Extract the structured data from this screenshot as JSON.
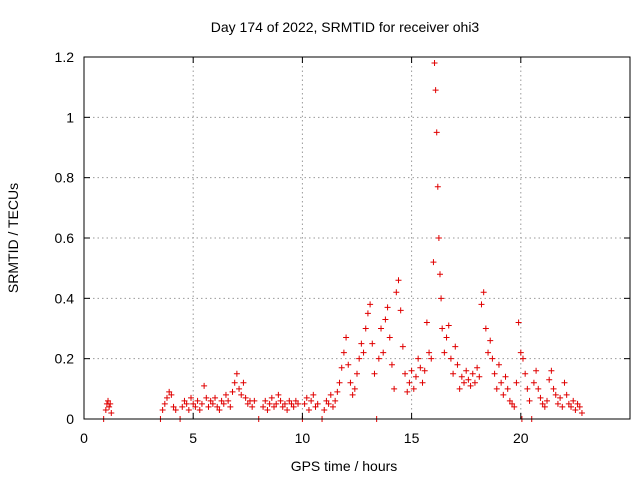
{
  "chart_data": {
    "type": "scatter",
    "title": "Day 174 of 2022, SRMTID for receiver ohi3",
    "xlabel": "GPS time / hours",
    "ylabel": "SRMTID / TECUs",
    "xlim": [
      0,
      25
    ],
    "ylim": [
      0,
      1.2
    ],
    "xticks": [
      0,
      5,
      10,
      15,
      20
    ],
    "xtick_labels": [
      "0",
      "5",
      "10",
      "15",
      "20"
    ],
    "yticks": [
      0,
      0.2,
      0.4,
      0.6,
      0.8,
      1.0,
      1.2
    ],
    "ytick_labels": [
      "0",
      "0.2",
      "0.4",
      "0.6",
      "0.8",
      "1",
      "1.2"
    ],
    "grid": true,
    "marker": "plus",
    "colors": {
      "series": "#e00000",
      "frame": "#000000",
      "grid": "#9a9a9a"
    },
    "series": [
      {
        "name": "SRMTID",
        "points": [
          [
            0.9,
            0.0
          ],
          [
            1.0,
            0.03
          ],
          [
            1.05,
            0.05
          ],
          [
            1.1,
            0.06
          ],
          [
            1.15,
            0.04
          ],
          [
            1.2,
            0.05
          ],
          [
            1.25,
            0.02
          ],
          [
            3.5,
            0.0
          ],
          [
            3.6,
            0.03
          ],
          [
            3.7,
            0.05
          ],
          [
            3.8,
            0.07
          ],
          [
            3.9,
            0.09
          ],
          [
            4.0,
            0.08
          ],
          [
            4.1,
            0.04
          ],
          [
            4.2,
            0.03
          ],
          [
            4.4,
            0.0
          ],
          [
            4.5,
            0.04
          ],
          [
            4.6,
            0.06
          ],
          [
            4.7,
            0.05
          ],
          [
            4.8,
            0.03
          ],
          [
            4.9,
            0.07
          ],
          [
            5.0,
            0.05
          ],
          [
            5.1,
            0.04
          ],
          [
            5.2,
            0.06
          ],
          [
            5.3,
            0.03
          ],
          [
            5.4,
            0.05
          ],
          [
            5.5,
            0.11
          ],
          [
            5.6,
            0.07
          ],
          [
            5.7,
            0.04
          ],
          [
            5.8,
            0.06
          ],
          [
            5.9,
            0.05
          ],
          [
            6.0,
            0.07
          ],
          [
            6.1,
            0.04
          ],
          [
            6.2,
            0.03
          ],
          [
            6.3,
            0.06
          ],
          [
            6.4,
            0.05
          ],
          [
            6.5,
            0.08
          ],
          [
            6.6,
            0.06
          ],
          [
            6.7,
            0.04
          ],
          [
            6.8,
            0.09
          ],
          [
            6.9,
            0.12
          ],
          [
            7.0,
            0.15
          ],
          [
            7.1,
            0.1
          ],
          [
            7.2,
            0.08
          ],
          [
            7.3,
            0.12
          ],
          [
            7.4,
            0.07
          ],
          [
            7.5,
            0.05
          ],
          [
            7.6,
            0.06
          ],
          [
            7.7,
            0.04
          ],
          [
            7.8,
            0.06
          ],
          [
            8.0,
            0.0
          ],
          [
            8.2,
            0.04
          ],
          [
            8.3,
            0.06
          ],
          [
            8.4,
            0.03
          ],
          [
            8.5,
            0.05
          ],
          [
            8.6,
            0.07
          ],
          [
            8.7,
            0.04
          ],
          [
            8.8,
            0.05
          ],
          [
            8.9,
            0.08
          ],
          [
            9.0,
            0.06
          ],
          [
            9.1,
            0.04
          ],
          [
            9.2,
            0.05
          ],
          [
            9.3,
            0.03
          ],
          [
            9.4,
            0.06
          ],
          [
            9.5,
            0.05
          ],
          [
            9.6,
            0.04
          ],
          [
            9.7,
            0.06
          ],
          [
            9.8,
            0.05
          ],
          [
            10.0,
            0.0
          ],
          [
            10.1,
            0.05
          ],
          [
            10.2,
            0.07
          ],
          [
            10.3,
            0.03
          ],
          [
            10.4,
            0.06
          ],
          [
            10.5,
            0.08
          ],
          [
            10.6,
            0.04
          ],
          [
            10.7,
            0.05
          ],
          [
            10.9,
            0.0
          ],
          [
            11.0,
            0.03
          ],
          [
            11.1,
            0.06
          ],
          [
            11.2,
            0.05
          ],
          [
            11.3,
            0.08
          ],
          [
            11.4,
            0.04
          ],
          [
            11.5,
            0.06
          ],
          [
            11.6,
            0.09
          ],
          [
            11.7,
            0.12
          ],
          [
            11.8,
            0.17
          ],
          [
            11.9,
            0.22
          ],
          [
            12.0,
            0.27
          ],
          [
            12.1,
            0.18
          ],
          [
            12.2,
            0.12
          ],
          [
            12.3,
            0.08
          ],
          [
            12.4,
            0.1
          ],
          [
            12.5,
            0.15
          ],
          [
            12.6,
            0.2
          ],
          [
            12.7,
            0.25
          ],
          [
            12.8,
            0.22
          ],
          [
            12.9,
            0.3
          ],
          [
            13.0,
            0.35
          ],
          [
            13.1,
            0.38
          ],
          [
            13.2,
            0.25
          ],
          [
            13.3,
            0.15
          ],
          [
            13.4,
            0.0
          ],
          [
            13.5,
            0.2
          ],
          [
            13.6,
            0.3
          ],
          [
            13.7,
            0.22
          ],
          [
            13.8,
            0.33
          ],
          [
            13.9,
            0.37
          ],
          [
            14.0,
            0.27
          ],
          [
            14.1,
            0.18
          ],
          [
            14.2,
            0.1
          ],
          [
            14.3,
            0.42
          ],
          [
            14.4,
            0.46
          ],
          [
            14.5,
            0.36
          ],
          [
            14.6,
            0.24
          ],
          [
            14.7,
            0.15
          ],
          [
            14.8,
            0.09
          ],
          [
            14.9,
            0.12
          ],
          [
            15.0,
            0.16
          ],
          [
            15.1,
            0.1
          ],
          [
            15.2,
            0.14
          ],
          [
            15.3,
            0.2
          ],
          [
            15.4,
            0.17
          ],
          [
            15.5,
            0.12
          ],
          [
            15.6,
            0.16
          ],
          [
            15.7,
            0.32
          ],
          [
            15.8,
            0.22
          ],
          [
            15.9,
            0.2
          ],
          [
            16.0,
            0.52
          ],
          [
            16.05,
            1.18
          ],
          [
            16.1,
            1.09
          ],
          [
            16.15,
            0.95
          ],
          [
            16.2,
            0.77
          ],
          [
            16.25,
            0.6
          ],
          [
            16.3,
            0.48
          ],
          [
            16.35,
            0.4
          ],
          [
            16.4,
            0.3
          ],
          [
            16.5,
            0.22
          ],
          [
            16.6,
            0.27
          ],
          [
            16.7,
            0.31
          ],
          [
            16.8,
            0.2
          ],
          [
            16.9,
            0.15
          ],
          [
            17.0,
            0.24
          ],
          [
            17.1,
            0.18
          ],
          [
            17.2,
            0.1
          ],
          [
            17.3,
            0.14
          ],
          [
            17.4,
            0.12
          ],
          [
            17.5,
            0.16
          ],
          [
            17.6,
            0.13
          ],
          [
            17.7,
            0.11
          ],
          [
            17.8,
            0.15
          ],
          [
            17.9,
            0.12
          ],
          [
            18.0,
            0.17
          ],
          [
            18.1,
            0.14
          ],
          [
            18.2,
            0.38
          ],
          [
            18.3,
            0.42
          ],
          [
            18.4,
            0.3
          ],
          [
            18.5,
            0.22
          ],
          [
            18.6,
            0.26
          ],
          [
            18.7,
            0.2
          ],
          [
            18.8,
            0.15
          ],
          [
            18.9,
            0.1
          ],
          [
            19.0,
            0.18
          ],
          [
            19.1,
            0.12
          ],
          [
            19.2,
            0.08
          ],
          [
            19.3,
            0.14
          ],
          [
            19.4,
            0.1
          ],
          [
            19.5,
            0.06
          ],
          [
            19.6,
            0.05
          ],
          [
            19.7,
            0.04
          ],
          [
            19.8,
            0.12
          ],
          [
            19.9,
            0.32
          ],
          [
            20.0,
            0.22
          ],
          [
            20.05,
            0.0
          ],
          [
            20.1,
            0.2
          ],
          [
            20.2,
            0.15
          ],
          [
            20.3,
            0.1
          ],
          [
            20.4,
            0.06
          ],
          [
            20.5,
            0.0
          ],
          [
            20.6,
            0.12
          ],
          [
            20.7,
            0.16
          ],
          [
            20.8,
            0.1
          ],
          [
            20.9,
            0.07
          ],
          [
            21.0,
            0.05
          ],
          [
            21.1,
            0.04
          ],
          [
            21.2,
            0.06
          ],
          [
            21.3,
            0.13
          ],
          [
            21.4,
            0.16
          ],
          [
            21.5,
            0.1
          ],
          [
            21.6,
            0.08
          ],
          [
            21.7,
            0.05
          ],
          [
            21.8,
            0.07
          ],
          [
            21.9,
            0.04
          ],
          [
            22.0,
            0.12
          ],
          [
            22.1,
            0.08
          ],
          [
            22.2,
            0.05
          ],
          [
            22.3,
            0.04
          ],
          [
            22.4,
            0.06
          ],
          [
            22.5,
            0.03
          ],
          [
            22.6,
            0.05
          ],
          [
            22.7,
            0.04
          ],
          [
            22.8,
            0.02
          ]
        ]
      }
    ]
  }
}
